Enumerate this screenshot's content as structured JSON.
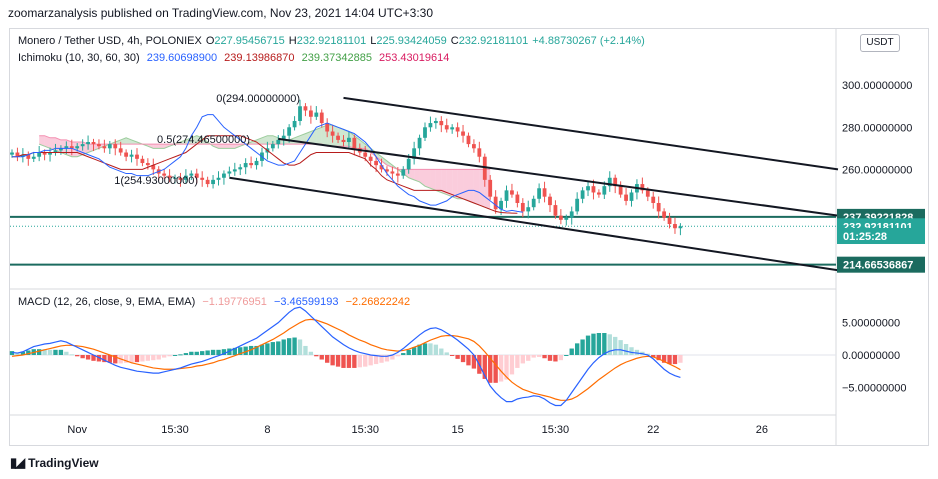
{
  "attribution": "zoomarzanalysis published on TradingView.com, Nov 23, 2021 14:04 UTC+3:30",
  "currency_button": "USDT",
  "brand": "TradingView",
  "legend_main": {
    "symbol": "Monero / Tether USD, 4h, POLONIEX",
    "o_label": "O",
    "o": "227.95456715",
    "h_label": "H",
    "h": "232.92181101",
    "l_label": "L",
    "l": "225.93424059",
    "c_label": "C",
    "c": "232.92181101",
    "change": "+4.88730267 (+2.14%)"
  },
  "legend_ichimoku": {
    "name": "Ichimoku (10, 30, 60, 30)",
    "v1": "239.60698900",
    "v2": "239.13986870",
    "v3": "239.37342885",
    "v4": "253.43019614"
  },
  "legend_macd": {
    "name": "MACD (12, 26, close, 9, EMA, EMA)",
    "hist": "−1.19776951",
    "macd": "−3.46599193",
    "signal": "−2.26822242"
  },
  "fib_labels": [
    {
      "text": "0(294.00000000)",
      "price": 294.0
    },
    {
      "text": "0.5(274.46500000)",
      "price": 274.465
    },
    {
      "text": "1(254.93000000)",
      "price": 254.93
    }
  ],
  "price_tags": [
    {
      "text": "237.39221828",
      "price": 237.39221828,
      "color": "#1b6b5f"
    },
    {
      "text": "232.92181101",
      "price": 232.92181101,
      "color": "#26a69a"
    },
    {
      "text": "01:25:28",
      "price": 228.3,
      "color": "#26a69a"
    },
    {
      "text": "214.66536867",
      "price": 214.66536867,
      "color": "#1b6b5f"
    }
  ],
  "chart_data": {
    "type": "candlestick",
    "price_axis": {
      "ticks": [
        300,
        280,
        260
      ],
      "labels": [
        "300.00000000",
        "280.00000000",
        "260.00000000"
      ],
      "range": [
        205,
        312
      ]
    },
    "macd_axis": {
      "ticks": [
        5,
        0,
        -5
      ],
      "labels": [
        "5.00000000",
        "0.00000000",
        "−5.00000000"
      ],
      "range": [
        -8.5,
        8.5
      ]
    },
    "time_axis": {
      "labels": [
        "Nov",
        "15:30",
        "8",
        "15:30",
        "15",
        "15:30",
        "22",
        "26"
      ],
      "bar_index": [
        12,
        30,
        47,
        65,
        82,
        100,
        118,
        138
      ]
    },
    "bars_total": 152,
    "closes": [
      268,
      266,
      267,
      265,
      266,
      268,
      267,
      268,
      269,
      270,
      271,
      270,
      271,
      272,
      273,
      272,
      271,
      270,
      272,
      270,
      268,
      266,
      267,
      265,
      263,
      262,
      260,
      258,
      257,
      256,
      256,
      255,
      257,
      258,
      256,
      255,
      253,
      255,
      256,
      258,
      259,
      260,
      261,
      263,
      262,
      264,
      268,
      270,
      272,
      274,
      276,
      280,
      283,
      290,
      288,
      285,
      287,
      282,
      278,
      276,
      274,
      273,
      275,
      270,
      268,
      266,
      264,
      262,
      260,
      259,
      258,
      257,
      260,
      265,
      270,
      275,
      280,
      282,
      283,
      281,
      279,
      280,
      278,
      276,
      272,
      270,
      266,
      255,
      247,
      241,
      245,
      250,
      248,
      244,
      240,
      242,
      246,
      251,
      247,
      243,
      238,
      236,
      237,
      240,
      246,
      250,
      252,
      249,
      248,
      252,
      256,
      252,
      248,
      245,
      249,
      253,
      250,
      247,
      244,
      240,
      237,
      234,
      232,
      232.92
    ],
    "ichimoku": {
      "tenkan": [
        266,
        266,
        266,
        267,
        268,
        268,
        269,
        269,
        270,
        270,
        270,
        270,
        269,
        268,
        267,
        266,
        265,
        263,
        261,
        260,
        259,
        258,
        258,
        257,
        257,
        257,
        258,
        259,
        260,
        262,
        264,
        266,
        270,
        276,
        280,
        285,
        286,
        286,
        283,
        280,
        278,
        276,
        274,
        272,
        270,
        268,
        266,
        264,
        263,
        262,
        262,
        263,
        264,
        268,
        272,
        276,
        280,
        281,
        282,
        281,
        280,
        279,
        278,
        277,
        275,
        273,
        270,
        266,
        262,
        258,
        255,
        252,
        250,
        248,
        247,
        245,
        244,
        243,
        243,
        244,
        245,
        247,
        248,
        249,
        250,
        250,
        249,
        247,
        245,
        243,
        241,
        240,
        240.5,
        240,
        239.6
      ],
      "kijun": [
        266,
        266,
        267,
        267,
        268,
        268,
        268,
        268,
        268,
        268,
        268,
        268,
        268,
        267,
        266,
        265,
        264,
        263,
        262,
        261,
        260,
        260,
        260,
        260,
        260,
        261,
        262,
        263,
        264,
        265,
        266,
        267,
        268,
        270,
        272,
        274,
        276,
        276,
        276,
        276,
        276,
        276,
        276,
        275,
        274,
        273,
        271,
        269,
        267,
        265,
        263,
        262,
        262,
        263,
        265,
        267,
        268,
        268,
        268,
        268,
        268,
        268,
        268,
        267,
        266,
        265,
        262,
        260,
        257,
        255,
        254,
        253,
        252,
        251,
        250,
        250,
        250,
        250,
        250,
        250,
        249,
        248,
        247,
        246,
        245,
        244,
        243,
        242,
        241,
        240,
        239.5,
        239.3,
        239.2,
        239.14
      ],
      "span_a": [
        272,
        271,
        270,
        269,
        268,
        267,
        266,
        266,
        267,
        268,
        269,
        270,
        271,
        272,
        273,
        274,
        275,
        274,
        273,
        272,
        271,
        270,
        270,
        270,
        271,
        272,
        273,
        274,
        275,
        276,
        275,
        273,
        271,
        270,
        270,
        270,
        270,
        271,
        272,
        273,
        274,
        275,
        276,
        276,
        275,
        274,
        274,
        275,
        276,
        277,
        278,
        279,
        280,
        281,
        281,
        280,
        279,
        278,
        276,
        274,
        272,
        270,
        268,
        266,
        264,
        262,
        260,
        258,
        256,
        255,
        254,
        252,
        251,
        250,
        249,
        248,
        247,
        246,
        246,
        245,
        244,
        243,
        242,
        241
      ],
      "span_b": [
        276,
        276,
        275,
        275,
        274,
        274,
        273,
        273,
        273,
        272,
        272,
        272,
        272,
        272,
        272,
        272,
        272,
        272,
        272,
        272,
        272,
        272,
        272,
        272,
        272,
        272,
        272,
        272,
        272,
        272,
        272,
        272,
        272,
        272,
        272,
        272,
        272,
        272,
        272,
        272,
        272,
        272,
        272,
        272,
        272,
        272,
        272,
        272,
        272,
        272,
        272,
        272,
        272,
        271,
        271,
        271,
        271,
        271,
        270,
        270,
        270,
        268,
        266,
        264,
        262,
        261,
        260,
        260,
        260,
        260,
        260,
        260,
        260,
        260,
        260,
        260,
        260,
        260,
        260,
        260,
        260,
        260,
        260,
        260
      ],
      "span_offset": 5
    },
    "channel_lines": [
      {
        "from": [
          61,
          294
        ],
        "to": [
          152,
          260
        ]
      },
      {
        "from": [
          49,
          274.5
        ],
        "to": [
          152,
          238
        ]
      },
      {
        "from": [
          40,
          256
        ],
        "to": [
          152,
          212
        ]
      }
    ],
    "horizontal_levels": [
      237.39221828,
      214.66536867
    ],
    "macd": {
      "macd_line": [
        0.4,
        0.3,
        0.5,
        0.9,
        1.3,
        1.5,
        1.7,
        1.8,
        2.0,
        2.2,
        2.0,
        1.6,
        1.2,
        0.8,
        0.4,
        0.0,
        -0.4,
        -0.8,
        -1.2,
        -1.6,
        -1.9,
        -2.1,
        -2.3,
        -2.5,
        -2.6,
        -2.7,
        -2.8,
        -2.8,
        -2.6,
        -2.4,
        -2.2,
        -2.0,
        -1.7,
        -1.4,
        -1.2,
        -1.0,
        -0.7,
        -0.4,
        -0.1,
        0.2,
        0.6,
        1.0,
        1.4,
        1.8,
        2.2,
        2.6,
        3.2,
        3.8,
        4.4,
        5.0,
        5.8,
        6.6,
        7.2,
        7.4,
        6.8,
        6.0,
        5.2,
        4.4,
        3.6,
        2.8,
        2.2,
        1.6,
        1.1,
        0.7,
        0.4,
        0.2,
        0.0,
        -0.1,
        -0.2,
        -0.2,
        0.0,
        0.4,
        1.0,
        1.7,
        2.4,
        3.1,
        3.7,
        4.1,
        4.2,
        3.9,
        3.4,
        2.9,
        2.3,
        1.6,
        0.9,
        0.0,
        -1.5,
        -3.2,
        -4.8,
        -5.8,
        -6.6,
        -7.2,
        -7.2,
        -6.8,
        -6.6,
        -6.5,
        -6.3,
        -6.4,
        -6.8,
        -7.4,
        -7.8,
        -7.8,
        -7.0,
        -5.8,
        -4.6,
        -3.4,
        -2.2,
        -1.2,
        -0.4,
        0.2,
        0.6,
        0.8,
        0.8,
        0.6,
        0.4,
        0.3,
        0.2,
        0.0,
        -0.6,
        -1.4,
        -2.2,
        -2.8,
        -3.2,
        -3.47
      ],
      "signal_line": [
        -0.2,
        -0.1,
        0.0,
        0.2,
        0.4,
        0.6,
        0.8,
        1.0,
        1.2,
        1.4,
        1.5,
        1.5,
        1.4,
        1.3,
        1.1,
        0.9,
        0.6,
        0.3,
        0.0,
        -0.3,
        -0.6,
        -0.9,
        -1.2,
        -1.4,
        -1.6,
        -1.8,
        -2.0,
        -2.1,
        -2.2,
        -2.2,
        -2.2,
        -2.1,
        -2.0,
        -1.9,
        -1.7,
        -1.6,
        -1.4,
        -1.2,
        -0.9,
        -0.7,
        -0.4,
        -0.1,
        0.2,
        0.5,
        0.8,
        1.2,
        1.6,
        2.0,
        2.4,
        2.9,
        3.4,
        4.0,
        4.5,
        5.0,
        5.4,
        5.5,
        5.4,
        5.1,
        4.8,
        4.4,
        4.0,
        3.6,
        3.1,
        2.7,
        2.3,
        2.0,
        1.6,
        1.3,
        1.0,
        0.8,
        0.7,
        0.6,
        0.7,
        0.9,
        1.2,
        1.5,
        1.9,
        2.3,
        2.6,
        2.9,
        3.0,
        3.0,
        2.9,
        2.7,
        2.5,
        2.1,
        1.4,
        0.5,
        -0.5,
        -1.5,
        -2.5,
        -3.4,
        -4.2,
        -4.8,
        -5.3,
        -5.6,
        -5.9,
        -6.1,
        -6.3,
        -6.5,
        -6.8,
        -7.0,
        -7.0,
        -6.8,
        -6.4,
        -5.8,
        -5.2,
        -4.5,
        -3.8,
        -3.2,
        -2.6,
        -2.0,
        -1.5,
        -1.1,
        -0.8,
        -0.5,
        -0.3,
        -0.2,
        -0.3,
        -0.6,
        -1.0,
        -1.4,
        -1.8,
        -2.27
      ],
      "start_index": 0
    }
  }
}
